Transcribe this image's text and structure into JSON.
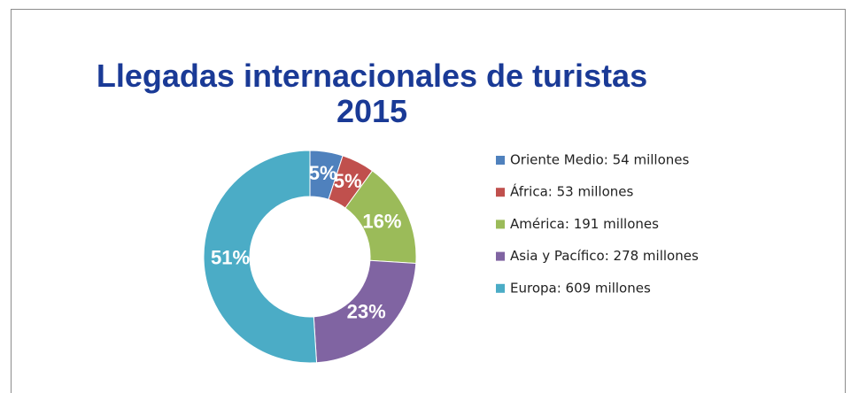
{
  "chart_data": {
    "type": "donut",
    "title": "Llegadas internacionales de turistas 2015",
    "categories": [
      "Oriente Medio: 54 millones",
      "África: 53 millones",
      "América: 191 millones",
      "Asia y Pacífico: 278 millones",
      "Europa: 609 millones"
    ],
    "values": [
      5,
      5,
      16,
      23,
      51
    ],
    "value_labels": [
      "5%",
      "5%",
      "16%",
      "23%",
      "51%"
    ],
    "colors": [
      "#4f81bd",
      "#c0504d",
      "#9bbb59",
      "#8064a2",
      "#4bacc6"
    ],
    "legend": "right"
  }
}
